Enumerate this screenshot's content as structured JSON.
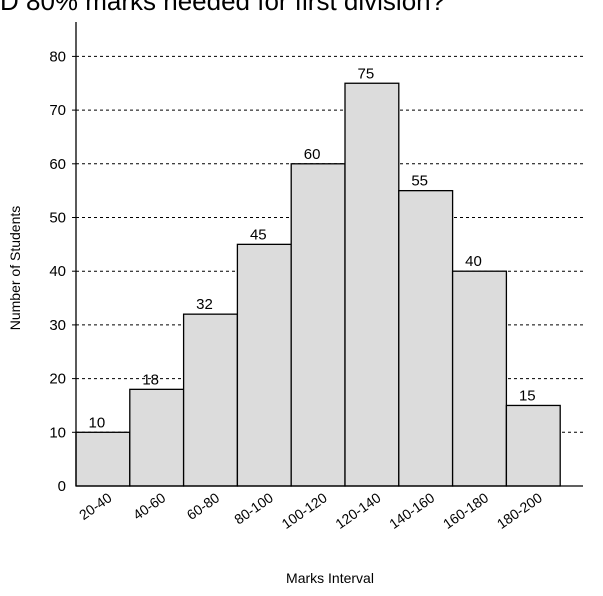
{
  "chart_data": {
    "type": "bar",
    "title": "",
    "top_partial_text": "D 80% marks needed for first division?",
    "xlabel": "Marks Interval",
    "ylabel": "Number of Students",
    "categories": [
      "20-40",
      "40-60",
      "60-80",
      "80-100",
      "100-120",
      "120-140",
      "140-160",
      "160-180",
      "180-200"
    ],
    "values": [
      10,
      18,
      32,
      45,
      60,
      75,
      55,
      40,
      15
    ],
    "ylim": [
      0,
      85
    ],
    "yticks": [
      0,
      10,
      20,
      30,
      40,
      50,
      60,
      70,
      80
    ],
    "grid": true,
    "grid_style": "dashed",
    "bar_color": "#dcdcdc",
    "bar_edge_color": "#000000",
    "data_labels": true,
    "legend": "none"
  }
}
